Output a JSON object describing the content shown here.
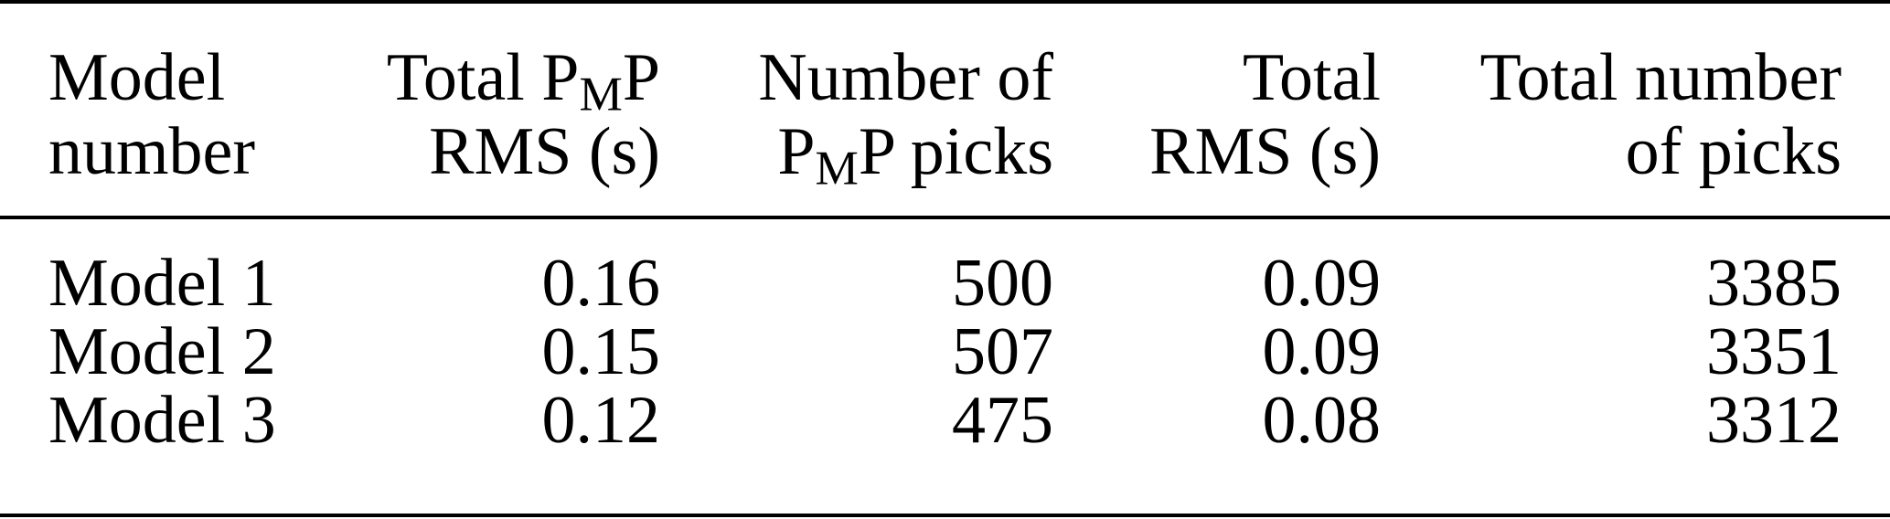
{
  "table": {
    "headers": [
      {
        "line1": "Model",
        "line2": "number"
      },
      {
        "line1_pre": "Total P",
        "line1_sub": "M",
        "line1_post": "P",
        "line2": "RMS (s)"
      },
      {
        "line1": "Number of",
        "line2_pre": "P",
        "line2_sub": "M",
        "line2_post": "P picks"
      },
      {
        "line1": "Total",
        "line2": "RMS (s)"
      },
      {
        "line1": "Total number",
        "line2": "of picks"
      }
    ],
    "rows": [
      [
        "Model 1",
        "0.16",
        "500",
        "0.09",
        "3385"
      ],
      [
        "Model 2",
        "0.15",
        "507",
        "0.09",
        "3351"
      ],
      [
        "Model 3",
        "0.12",
        "475",
        "0.08",
        "3312"
      ]
    ]
  }
}
